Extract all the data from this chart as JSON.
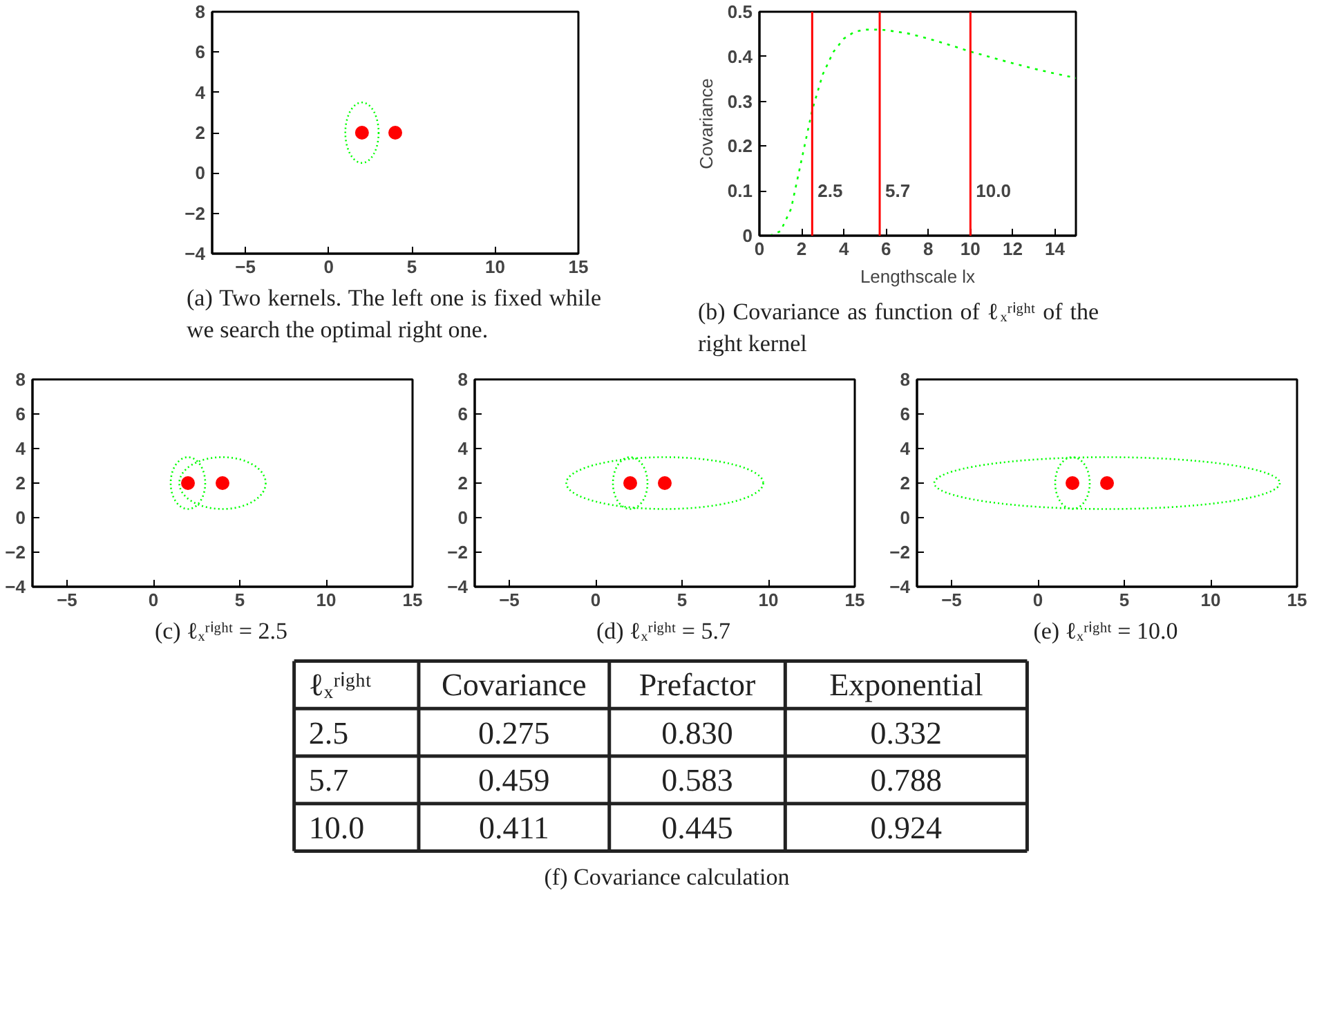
{
  "chart_data": [
    {
      "type": "scatter",
      "title": "(a) Two kernels. The left one is fixed while we search the optimal right one.",
      "xlim": [
        -7,
        15
      ],
      "ylim": [
        -4,
        8
      ],
      "xticks": [
        -5,
        0,
        5,
        10,
        15
      ],
      "yticks": [
        -4,
        -2,
        0,
        2,
        4,
        6,
        8
      ],
      "grid": false,
      "series": [
        {
          "type": "scatter",
          "marker": "circle",
          "color": "#ff0000",
          "x": [
            2,
            4
          ],
          "values": [
            2,
            2
          ]
        }
      ]
    },
    {
      "type": "line",
      "title": "(b) Covariance as function of ℓₓʳⁱᵍʰᵗ of the right kernel",
      "xlabel": "Lengthscale lx",
      "ylabel": "Covariance",
      "xlim": [
        0,
        15
      ],
      "ylim": [
        0,
        0.5
      ],
      "xticks": [
        0,
        2,
        4,
        6,
        8,
        10,
        12,
        14
      ],
      "yticks": [
        0,
        0.1,
        0.2,
        0.3,
        0.4,
        0.5
      ],
      "grid": false,
      "series": [
        {
          "color": "#00ff00",
          "line_style": "dotted",
          "x": [
            0.5,
            1,
            1.5,
            2,
            2.5,
            3,
            3.5,
            4,
            4.5,
            5,
            5.7,
            6,
            7,
            8,
            9,
            10,
            11,
            12,
            13,
            14,
            15
          ],
          "values": [
            0,
            0.01,
            0.06,
            0.17,
            0.28,
            0.36,
            0.41,
            0.44,
            0.455,
            0.46,
            0.46,
            0.459,
            0.452,
            0.44,
            0.426,
            0.411,
            0.398,
            0.385,
            0.373,
            0.362,
            0.352
          ]
        }
      ],
      "ref_lines": [
        {
          "axis": "x",
          "value": 2.5,
          "label": "2.5",
          "color": "#ff0000"
        },
        {
          "axis": "x",
          "value": 5.7,
          "label": "5.7",
          "color": "#ff0000"
        },
        {
          "axis": "x",
          "value": 10,
          "label": "10.0",
          "color": "#ff0000"
        }
      ]
    },
    {
      "type": "scatter",
      "title": "(c) ℓₓʳⁱᵍʰᵗ = 2.5",
      "xlim": [
        -7,
        15
      ],
      "ylim": [
        -4,
        8
      ],
      "xticks": [
        -5,
        0,
        5,
        10,
        15
      ],
      "yticks": [
        -4,
        -2,
        0,
        2,
        4,
        6,
        8
      ],
      "grid": false,
      "series": [
        {
          "type": "scatter",
          "marker": "circle",
          "color": "#ff0000",
          "x": [
            2,
            4
          ],
          "values": [
            2,
            2
          ]
        }
      ]
    },
    {
      "type": "scatter",
      "title": "(d) ℓₓʳⁱᵍʰᵗ = 5.7",
      "xlim": [
        -7,
        15
      ],
      "ylim": [
        -4,
        8
      ],
      "xticks": [
        -5,
        0,
        5,
        10,
        15
      ],
      "yticks": [
        -4,
        -2,
        0,
        2,
        4,
        6,
        8
      ],
      "grid": false,
      "series": [
        {
          "type": "scatter",
          "marker": "circle",
          "color": "#ff0000",
          "x": [
            2,
            4
          ],
          "values": [
            2,
            2
          ]
        }
      ]
    },
    {
      "type": "scatter",
      "title": "(e) ℓₓʳⁱᵍʰᵗ = 10.0",
      "xlim": [
        -7,
        15
      ],
      "ylim": [
        -4,
        8
      ],
      "xticks": [
        -5,
        0,
        5,
        10,
        15
      ],
      "yticks": [
        -4,
        -2,
        0,
        2,
        4,
        6,
        8
      ],
      "grid": false,
      "series": [
        {
          "type": "scatter",
          "marker": "circle",
          "color": "#ff0000",
          "x": [
            2,
            4
          ],
          "values": [
            2,
            2
          ]
        }
      ]
    },
    {
      "type": "other",
      "title": "(f) Covariance calculation",
      "categories": [
        "ℓₓʳⁱᵍʰᵗ",
        "Covariance",
        "Prefactor",
        "Exponential"
      ],
      "annotations": [
        "2.5",
        "0.275",
        "0.830",
        "0.332",
        "5.7",
        "0.459",
        "0.583",
        "0.788",
        "10.0",
        "0.411",
        "0.445",
        "0.924"
      ]
    }
  ]
}
